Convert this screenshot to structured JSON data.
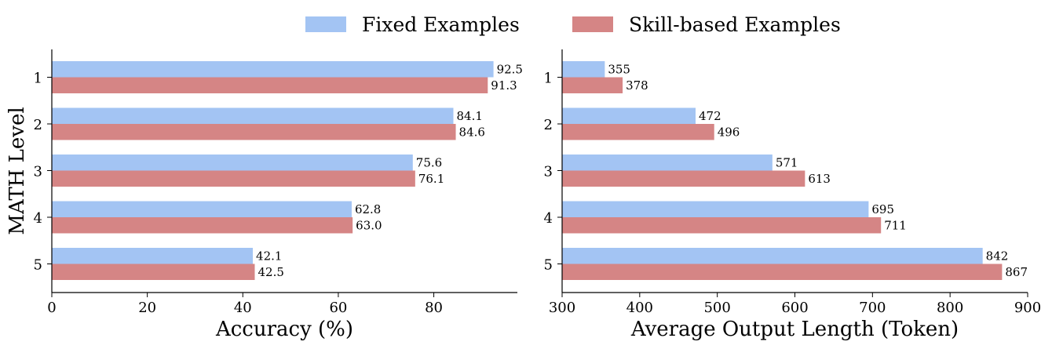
{
  "colors": {
    "fixed": "#a3c4f3",
    "skill": "#d58585"
  },
  "legend": {
    "fixed_label": "Fixed Examples",
    "skill_label": "Skill-based Examples"
  },
  "chart_data": [
    {
      "type": "bar",
      "orientation": "horizontal",
      "categories": [
        "1",
        "2",
        "3",
        "4",
        "5"
      ],
      "series": [
        {
          "name": "Fixed Examples",
          "values": [
            92.5,
            84.1,
            75.6,
            62.8,
            42.1
          ]
        },
        {
          "name": "Skill-based Examples",
          "values": [
            91.3,
            84.6,
            76.1,
            63.0,
            42.5
          ]
        }
      ],
      "value_labels": {
        "Fixed Examples": [
          "92.5",
          "84.1",
          "75.6",
          "62.8",
          "42.1"
        ],
        "Skill-based Examples": [
          "91.3",
          "84.6",
          "76.1",
          "63.0",
          "42.5"
        ]
      },
      "xlabel": "Accuracy (%)",
      "ylabel": "MATH Level",
      "xlim": [
        0,
        97.5
      ],
      "xticks": [
        0,
        20,
        40,
        60,
        80
      ],
      "grid": false,
      "legend_position": "top-center"
    },
    {
      "type": "bar",
      "orientation": "horizontal",
      "categories": [
        "1",
        "2",
        "3",
        "4",
        "5"
      ],
      "series": [
        {
          "name": "Fixed Examples",
          "values": [
            355,
            472,
            571,
            695,
            842
          ]
        },
        {
          "name": "Skill-based Examples",
          "values": [
            378,
            496,
            613,
            711,
            867
          ]
        }
      ],
      "value_labels": {
        "Fixed Examples": [
          "355",
          "472",
          "571",
          "695",
          "842"
        ],
        "Skill-based Examples": [
          "378",
          "496",
          "613",
          "711",
          "867"
        ]
      },
      "xlabel": "Average Output Length (Token)",
      "ylabel": "",
      "xlim": [
        300,
        900
      ],
      "xticks": [
        300,
        400,
        500,
        600,
        700,
        800,
        900
      ],
      "grid": false,
      "legend_position": "top-center"
    }
  ]
}
